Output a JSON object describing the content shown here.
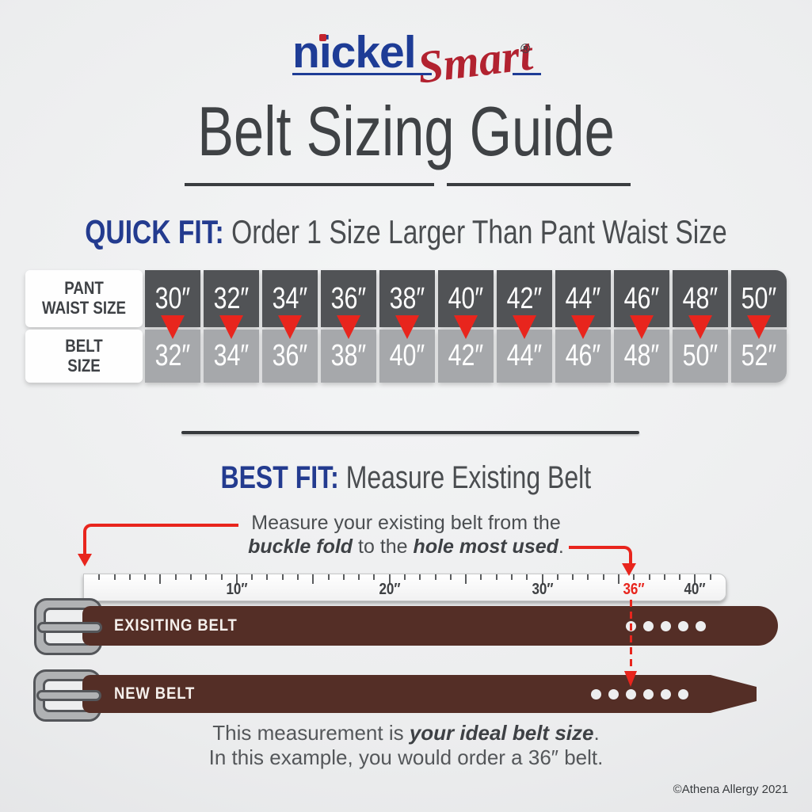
{
  "brand": {
    "name_primary": "nickel",
    "name_secondary": "Smart",
    "registered_mark": "®"
  },
  "title": "Belt Sizing Guide",
  "quick_fit": {
    "label": "QUICK FIT:",
    "text": "Order 1 Size Larger Than Pant Waist Size"
  },
  "size_table": {
    "row1_label_line1": "PANT",
    "row1_label_line2": "WAIST SIZE",
    "row2_label_line1": "BELT",
    "row2_label_line2": "SIZE",
    "pant_sizes": [
      "30″",
      "32″",
      "34″",
      "36″",
      "38″",
      "40″",
      "42″",
      "44″",
      "46″",
      "48″",
      "50″"
    ],
    "belt_sizes": [
      "32″",
      "34″",
      "36″",
      "38″",
      "40″",
      "42″",
      "44″",
      "46″",
      "48″",
      "50″",
      "52″"
    ]
  },
  "best_fit": {
    "label": "BEST FIT:",
    "text": "Measure Existing Belt"
  },
  "measure_note": {
    "line1": "Measure your existing belt from the",
    "line2_bold1": "buckle fold",
    "line2_mid": " to the ",
    "line2_bold2": "hole most used",
    "line2_end": "."
  },
  "ruler": {
    "max_inches": 42,
    "labels": [
      {
        "inches": 10,
        "text": "10″",
        "highlight": false
      },
      {
        "inches": 20,
        "text": "20″",
        "highlight": false
      },
      {
        "inches": 30,
        "text": "30″",
        "highlight": false
      },
      {
        "inches": 36,
        "text": "36″",
        "highlight": true
      },
      {
        "inches": 40,
        "text": "40″",
        "highlight": false
      }
    ]
  },
  "belts": {
    "existing": {
      "label": "EXISITING BELT",
      "hole_count": 5
    },
    "new": {
      "label": "NEW BELT",
      "hole_count": 6
    }
  },
  "result_note": {
    "line1_prefix": "This measurement is ",
    "line1_bold": "your ideal belt size",
    "line1_end": ".",
    "line2": "In this example, you would order a 36″ belt."
  },
  "copyright": "©Athena Allergy 2021",
  "colors": {
    "accent_blue": "#233B8F",
    "logo_blue": "#1E3C96",
    "logo_red": "#B22230",
    "arrow_red": "#E8251D",
    "belt_brown": "#542E26",
    "cell_dark": "#515356",
    "cell_light": "#A6A8AB",
    "buckle_gray": "#B0B2B4"
  }
}
